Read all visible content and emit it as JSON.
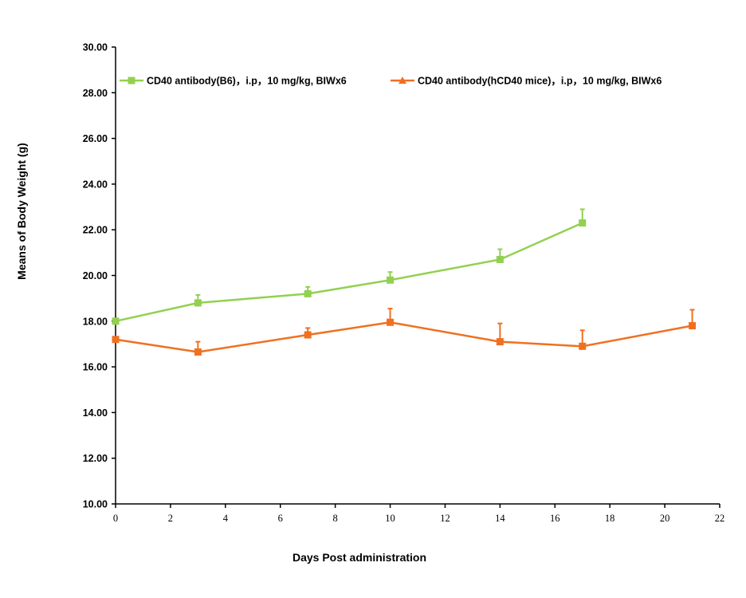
{
  "chart_data": {
    "type": "line",
    "xlabel": "Days Post administration",
    "ylabel": "Means of Body Weight (g)",
    "xlim": [
      0,
      22
    ],
    "ylim": [
      10,
      30
    ],
    "x_ticks": [
      0,
      2,
      4,
      6,
      8,
      10,
      12,
      14,
      16,
      18,
      20,
      22
    ],
    "x_tick_labels": [
      "0",
      "2",
      "4",
      "6",
      "8",
      "10",
      "12",
      "14",
      "16",
      "18",
      "20",
      "22"
    ],
    "y_ticks": [
      10,
      12,
      14,
      16,
      18,
      20,
      22,
      24,
      26,
      28,
      30
    ],
    "y_tick_labels": [
      "10.00",
      "12.00",
      "14.00",
      "16.00",
      "18.00",
      "20.00",
      "22.00",
      "24.00",
      "26.00",
      "28.00",
      "30.00"
    ],
    "grid": false,
    "legend_position": "top",
    "series": [
      {
        "name": "CD40 antibody(B6)，i.p，10 mg/kg, BIWx6",
        "color": "#92d050",
        "marker": "square",
        "x": [
          0,
          3,
          7,
          10,
          14,
          17
        ],
        "y": [
          18.0,
          18.8,
          19.2,
          19.8,
          20.7,
          22.3
        ],
        "error": [
          0.0,
          0.35,
          0.3,
          0.35,
          0.45,
          0.6
        ]
      },
      {
        "name": "CD40 antibody(hCD40 mice)，i.p，10 mg/kg, BIWx6",
        "color": "#f07020",
        "marker": "triangle",
        "x": [
          0,
          3,
          7,
          10,
          14,
          17,
          21
        ],
        "y": [
          17.2,
          16.65,
          17.4,
          17.95,
          17.1,
          16.9,
          17.8
        ],
        "error": [
          0.0,
          0.45,
          0.3,
          0.6,
          0.8,
          0.7,
          0.7
        ]
      }
    ]
  }
}
